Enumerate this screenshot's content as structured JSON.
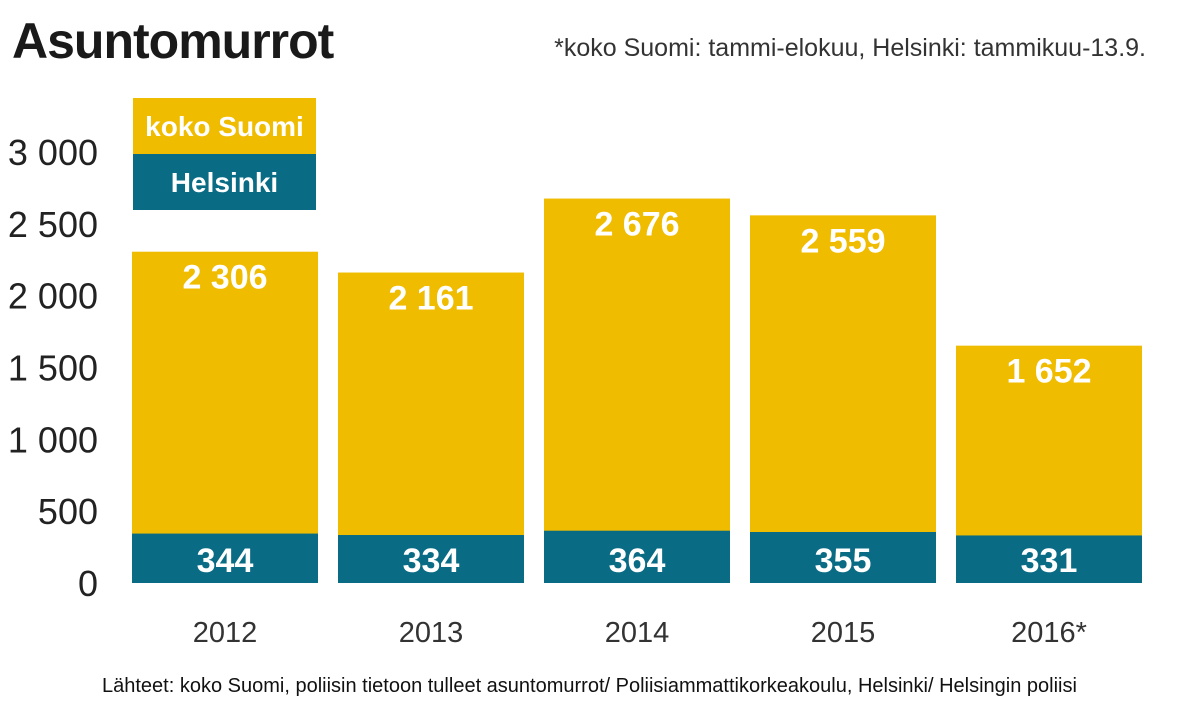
{
  "header": {
    "title": "Asuntomurrot",
    "note": "*koko Suomi: tammi-elokuu, Helsinki: tammikuu-13.9."
  },
  "footer": {
    "source": "Lähteet: koko Suomi, poliisin tietoon tulleet asuntomurrot/ Poliisiammattikorkeakoulu, Helsinki/ Helsingin poliisi"
  },
  "colors": {
    "koko_suomi": "#f0bc00",
    "helsinki": "#0a6b84"
  },
  "chart_data": {
    "type": "bar",
    "title": "Asuntomurrot",
    "categories": [
      "2012",
      "2013",
      "2014",
      "2015",
      "2016*"
    ],
    "series": [
      {
        "name": "koko Suomi",
        "values": [
          2306,
          2161,
          2676,
          2559,
          1652
        ],
        "labels": [
          "2 306",
          "2 161",
          "2 676",
          "2 559",
          "1 652"
        ]
      },
      {
        "name": "Helsinki",
        "values": [
          344,
          334,
          364,
          355,
          331
        ],
        "labels": [
          "344",
          "334",
          "364",
          "355",
          "331"
        ]
      }
    ],
    "ylim": [
      0,
      3000
    ],
    "yticks": [
      0,
      500,
      1000,
      1500,
      2000,
      2500,
      3000
    ],
    "ytick_labels": [
      "0",
      "500",
      "1 000",
      "1 500",
      "2 000",
      "2 500",
      "3 000"
    ],
    "legend": [
      "koko Suomi",
      "Helsinki"
    ],
    "legend_position": "top-left",
    "grid": false,
    "xlabel": "",
    "ylabel": ""
  }
}
